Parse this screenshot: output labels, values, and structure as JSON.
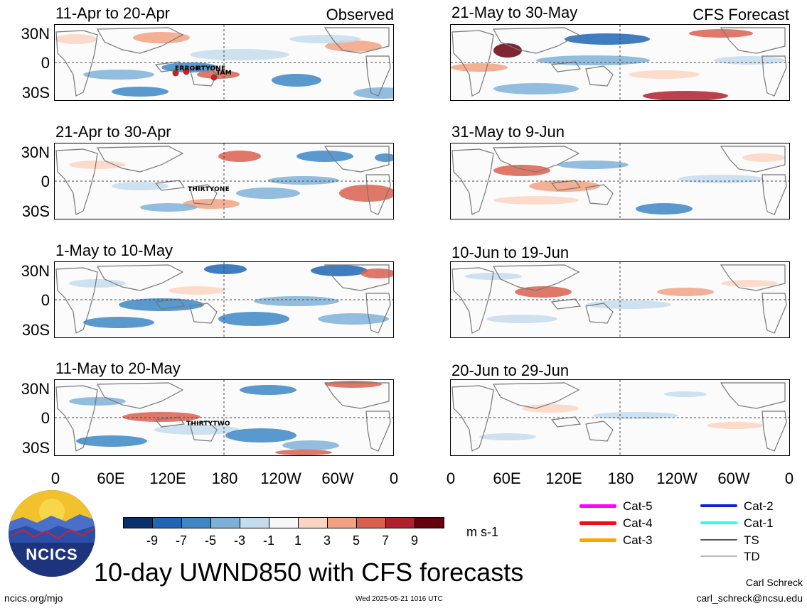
{
  "panels": {
    "left": [
      {
        "title": "11-Apr to 20-Apr",
        "tag": "Observed"
      },
      {
        "title": "21-Apr to 30-Apr",
        "tag": ""
      },
      {
        "title": "1-May to 10-May",
        "tag": ""
      },
      {
        "title": "11-May to 20-May",
        "tag": ""
      }
    ],
    "right": [
      {
        "title": "21-May to 30-May",
        "tag": "CFS Forecast"
      },
      {
        "title": "31-May to 9-Jun",
        "tag": ""
      },
      {
        "title": "10-Jun to 19-Jun",
        "tag": ""
      },
      {
        "title": "20-Jun to 29-Jun",
        "tag": ""
      }
    ]
  },
  "lat_labels": [
    "30N",
    "0",
    "30S"
  ],
  "lon_labels": [
    "0",
    "60E",
    "120E",
    "180",
    "120W",
    "60W",
    "0"
  ],
  "storms": {
    "p1_a": "ERROL",
    "p1_b": "RTYONE",
    "p1_c": "TAM",
    "p2_a": "THIRTYONE",
    "p4_a": "THIRTYTWO"
  },
  "colorbar": {
    "labels": [
      "-9",
      "-7",
      "-5",
      "-3",
      "-1",
      "1",
      "3",
      "5",
      "7",
      "9"
    ],
    "colors": [
      "#08306b",
      "#1f66b5",
      "#3d87c4",
      "#7fb1d8",
      "#c4dcee",
      "#f7f7f7",
      "#fbd5c3",
      "#f2a283",
      "#d9604d",
      "#b0202d",
      "#67000d"
    ],
    "units": "m s-1"
  },
  "legend": [
    {
      "label": "Cat-5",
      "color": "#ff00ff"
    },
    {
      "label": "Cat-4",
      "color": "#ee1111"
    },
    {
      "label": "Cat-3",
      "color": "#ffa500"
    },
    {
      "label": "Cat-2",
      "color": "#0a1fd8"
    },
    {
      "label": "Cat-1",
      "color": "#22ffff"
    },
    {
      "label": "TS",
      "color": "#555555"
    },
    {
      "label": "TD",
      "color": "#bbbbbb"
    }
  ],
  "logo": {
    "text": "NCICS"
  },
  "main_title": "10-day UWND850 with CFS forecasts",
  "footer": {
    "site": "ncics.org/mjo",
    "timestamp": "Wed 2025-05-21 1016 UTC",
    "author": "Carl Schreck",
    "email": "carl_schreck@ncsu.edu"
  }
}
